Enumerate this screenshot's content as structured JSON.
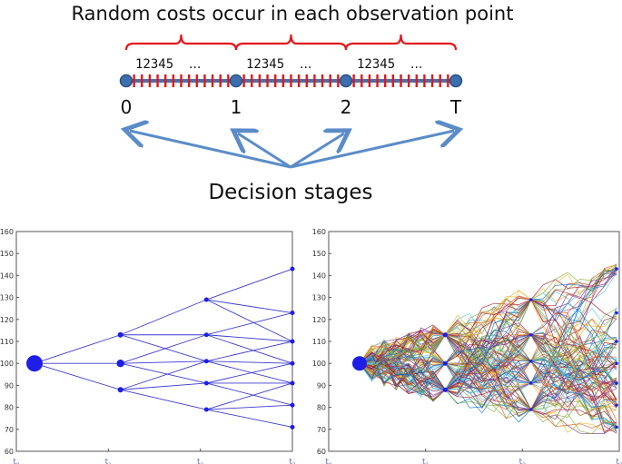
{
  "timeline": {
    "title": "Random costs occur in each observation point",
    "groups": [
      {
        "digits": "12345",
        "ellipsis": "..."
      },
      {
        "digits": "12345",
        "ellipsis": "..."
      },
      {
        "digits": "12345",
        "ellipsis": "..."
      }
    ],
    "stage_labels": [
      "0",
      "1",
      "2",
      "T"
    ],
    "subtitle": "Decision stages",
    "colors": {
      "line": "#4a6fa5",
      "tick": "#e3161b",
      "node": "#3d6fae",
      "brace": "#e3161b",
      "arrow": "#5b8cc8"
    }
  },
  "chart_data": [
    {
      "type": "line",
      "title": "",
      "xlabel": "",
      "ylabel": "",
      "ylim": [
        60,
        160
      ],
      "yticks": [
        "60",
        "70",
        "80",
        "90",
        "100",
        "110",
        "120",
        "130",
        "140",
        "150",
        "160"
      ],
      "xticks": [
        {
          "base": "t",
          "sub": "0"
        },
        {
          "base": "t",
          "sub": "1"
        },
        {
          "base": "t",
          "sub": "2"
        },
        {
          "base": "t",
          "sub": "3"
        }
      ],
      "nodes": [
        {
          "t": 0,
          "v": 100
        },
        {
          "t": 1,
          "v": 113
        },
        {
          "t": 1,
          "v": 100
        },
        {
          "t": 1,
          "v": 88
        },
        {
          "t": 2,
          "v": 129
        },
        {
          "t": 2,
          "v": 113
        },
        {
          "t": 2,
          "v": 101
        },
        {
          "t": 2,
          "v": 91
        },
        {
          "t": 2,
          "v": 79
        },
        {
          "t": 3,
          "v": 143
        },
        {
          "t": 3,
          "v": 123
        },
        {
          "t": 3,
          "v": 110
        },
        {
          "t": 3,
          "v": 100
        },
        {
          "t": 3,
          "v": 91
        },
        {
          "t": 3,
          "v": 81
        },
        {
          "t": 3,
          "v": 71
        }
      ],
      "edges": [
        [
          0,
          1
        ],
        [
          0,
          2
        ],
        [
          0,
          3
        ],
        [
          1,
          4
        ],
        [
          1,
          5
        ],
        [
          1,
          6
        ],
        [
          2,
          5
        ],
        [
          2,
          6
        ],
        [
          2,
          7
        ],
        [
          3,
          6
        ],
        [
          3,
          7
        ],
        [
          3,
          8
        ],
        [
          4,
          9
        ],
        [
          4,
          10
        ],
        [
          4,
          11
        ],
        [
          5,
          10
        ],
        [
          5,
          11
        ],
        [
          5,
          12
        ],
        [
          6,
          11
        ],
        [
          6,
          12
        ],
        [
          6,
          13
        ],
        [
          7,
          12
        ],
        [
          7,
          13
        ],
        [
          7,
          14
        ],
        [
          8,
          13
        ],
        [
          8,
          14
        ],
        [
          8,
          15
        ]
      ],
      "colors": {
        "tree": "#3b3bd0",
        "node": "#1e1ee6"
      }
    },
    {
      "type": "line",
      "title": "",
      "xlabel": "",
      "ylabel": "",
      "ylim": [
        60,
        160
      ],
      "yticks": [
        "60",
        "70",
        "80",
        "90",
        "100",
        "110",
        "120",
        "130",
        "140",
        "150",
        "160"
      ],
      "xticks": [
        {
          "base": "t",
          "sub": "0"
        },
        {
          "base": "t",
          "sub": "1"
        },
        {
          "base": "t",
          "sub": "2"
        },
        {
          "base": "t",
          "sub": "3"
        }
      ],
      "paths": 120,
      "colors": {
        "node": "#1e1ee6"
      }
    }
  ]
}
